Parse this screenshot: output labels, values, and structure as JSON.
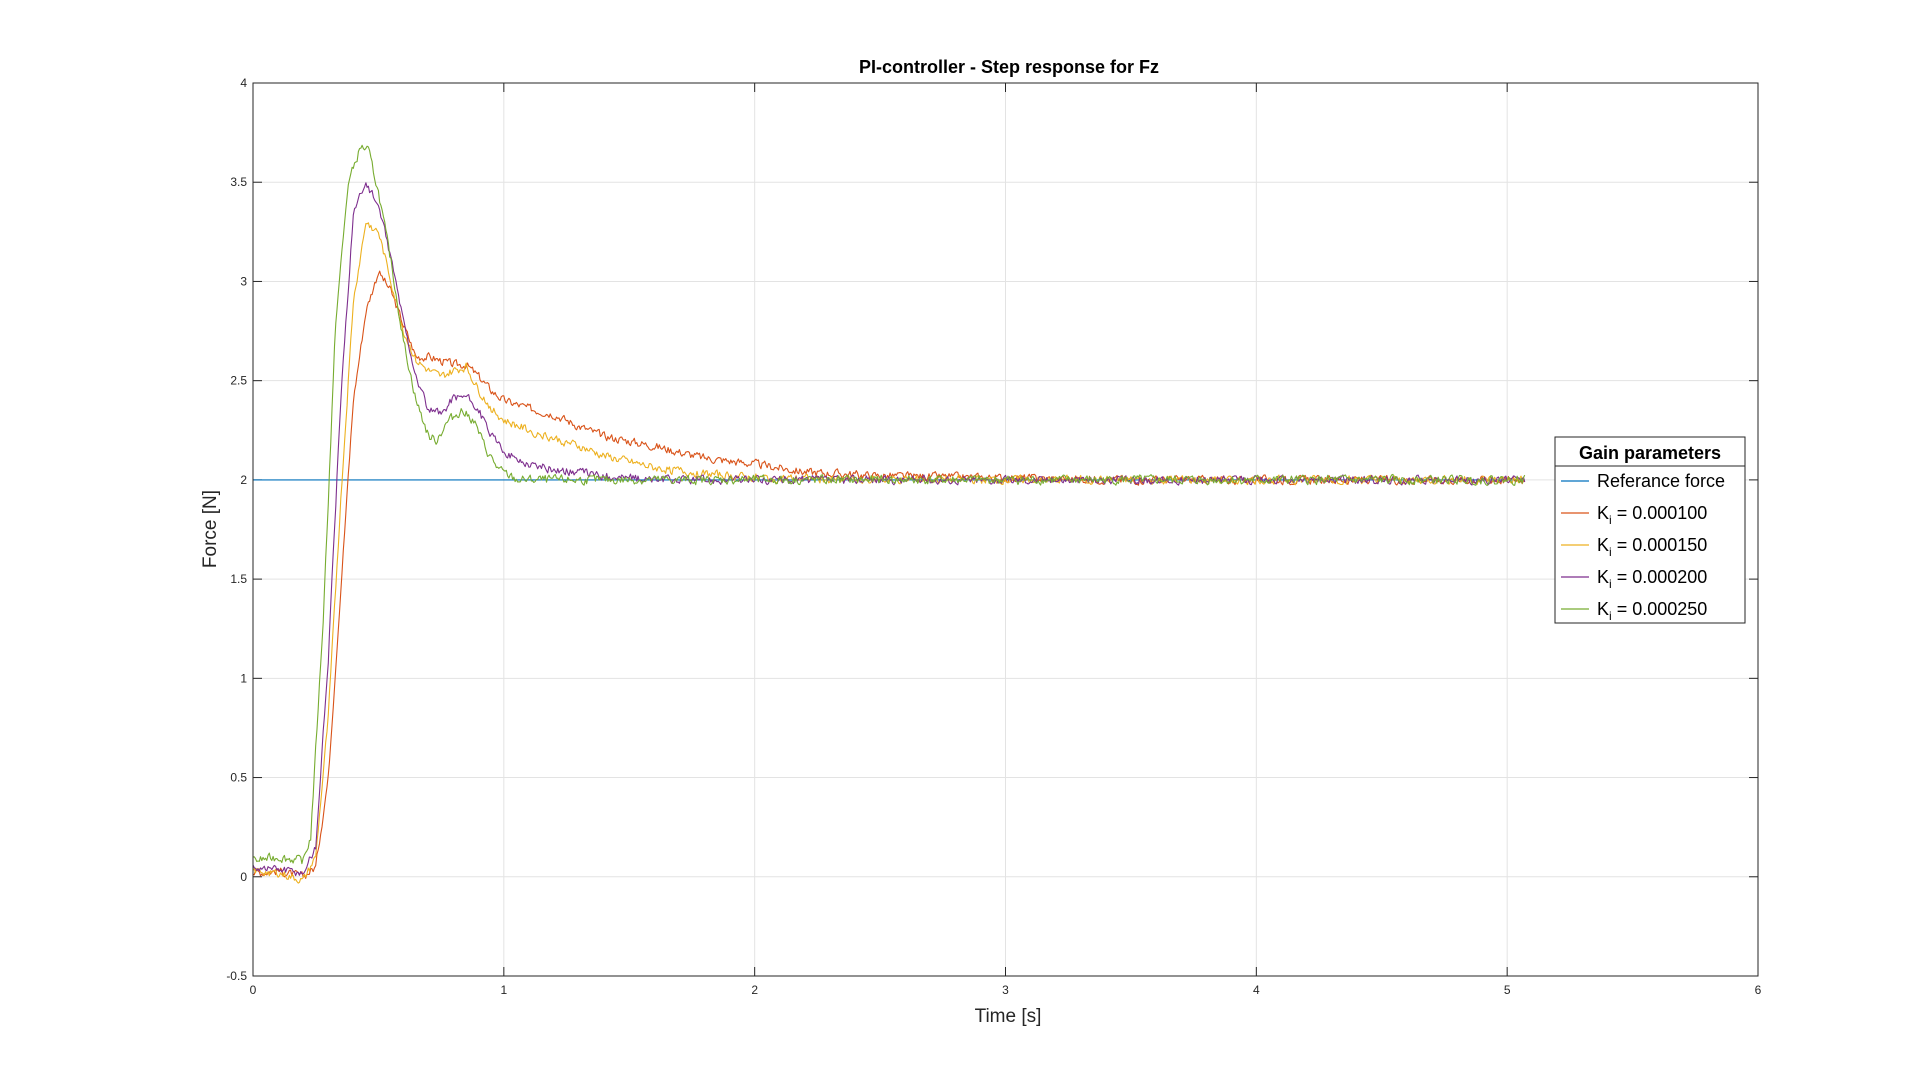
{
  "chart_data": {
    "type": "line",
    "title": "PI-controller - Step response for Fz",
    "xlabel": "Time [s]",
    "ylabel": "Force [N]",
    "xlim": [
      0,
      6
    ],
    "ylim": [
      -0.5,
      4
    ],
    "xticks": [
      "0",
      "1",
      "2",
      "3",
      "4",
      "5",
      "6"
    ],
    "yticks": [
      "-0.5",
      "0",
      "0.5",
      "1",
      "1.5",
      "2",
      "2.5",
      "3",
      "3.5",
      "4"
    ],
    "grid": true,
    "legend": {
      "title": "Gain parameters",
      "placement": "right"
    },
    "series": [
      {
        "name": "Referance force",
        "label_base": "Referance force",
        "label_sub": "",
        "label_rest": "",
        "color": "#0072BD",
        "x": [
          0,
          5.07
        ],
        "y": [
          2,
          2
        ],
        "noise": 0
      },
      {
        "name": "Ki = 0.000100",
        "label_base": "K",
        "label_sub": "i",
        "label_rest": " = 0.000100",
        "color": "#D95319",
        "x": [
          0,
          0.1,
          0.2,
          0.25,
          0.3,
          0.35,
          0.4,
          0.45,
          0.5,
          0.55,
          0.6,
          0.65,
          0.7,
          0.75,
          0.8,
          0.85,
          0.9,
          0.95,
          1.0,
          1.1,
          1.2,
          1.3,
          1.4,
          1.6,
          1.8,
          2.0,
          2.2,
          2.5,
          3.0,
          3.5,
          4.0,
          4.5,
          5.07
        ],
        "y": [
          0.02,
          0.03,
          0.0,
          0.05,
          0.5,
          1.45,
          2.4,
          2.85,
          3.05,
          2.95,
          2.78,
          2.62,
          2.62,
          2.6,
          2.58,
          2.58,
          2.52,
          2.45,
          2.4,
          2.36,
          2.33,
          2.27,
          2.22,
          2.17,
          2.11,
          2.08,
          2.04,
          2.02,
          2.01,
          2.0,
          2.0,
          2.0,
          2.0
        ],
        "noise": 0.012
      },
      {
        "name": "Ki = 0.000150",
        "label_base": "K",
        "label_sub": "i",
        "label_rest": " = 0.000150",
        "color": "#EDB120",
        "x": [
          0,
          0.1,
          0.2,
          0.25,
          0.3,
          0.35,
          0.4,
          0.45,
          0.5,
          0.55,
          0.6,
          0.65,
          0.7,
          0.75,
          0.8,
          0.85,
          0.9,
          0.95,
          1.0,
          1.1,
          1.2,
          1.3,
          1.4,
          1.6,
          1.8,
          2.0,
          2.5,
          3.0,
          3.5,
          4.0,
          4.5,
          5.07
        ],
        "y": [
          0.03,
          0.02,
          -0.02,
          0.1,
          0.8,
          1.9,
          2.9,
          3.3,
          3.25,
          3.0,
          2.75,
          2.6,
          2.55,
          2.52,
          2.55,
          2.57,
          2.45,
          2.36,
          2.3,
          2.25,
          2.21,
          2.17,
          2.12,
          2.06,
          2.03,
          2.01,
          2.0,
          2.0,
          2.0,
          2.0,
          2.0,
          2.0
        ],
        "noise": 0.012
      },
      {
        "name": "Ki = 0.000200",
        "label_base": "K",
        "label_sub": "i",
        "label_rest": " = 0.000200",
        "color": "#7E2F8E",
        "x": [
          0,
          0.1,
          0.2,
          0.25,
          0.3,
          0.35,
          0.4,
          0.45,
          0.5,
          0.55,
          0.6,
          0.65,
          0.7,
          0.75,
          0.8,
          0.85,
          0.9,
          0.95,
          1.0,
          1.05,
          1.1,
          1.2,
          1.3,
          1.4,
          1.6,
          1.8,
          2.0,
          2.5,
          3.0,
          3.5,
          4.0,
          4.5,
          5.07
        ],
        "y": [
          0.05,
          0.04,
          0.02,
          0.15,
          1.1,
          2.4,
          3.35,
          3.5,
          3.38,
          3.12,
          2.8,
          2.52,
          2.35,
          2.33,
          2.42,
          2.42,
          2.35,
          2.22,
          2.15,
          2.1,
          2.08,
          2.05,
          2.04,
          2.02,
          2.0,
          2.0,
          2.0,
          2.0,
          2.0,
          2.0,
          2.0,
          2.0,
          2.0
        ],
        "noise": 0.012
      },
      {
        "name": "Ki = 0.000250",
        "label_base": "K",
        "label_sub": "i",
        "label_rest": " = 0.000250",
        "color": "#77AC30",
        "x": [
          0,
          0.1,
          0.2,
          0.23,
          0.28,
          0.33,
          0.38,
          0.43,
          0.46,
          0.5,
          0.55,
          0.6,
          0.65,
          0.7,
          0.73,
          0.78,
          0.83,
          0.88,
          0.93,
          0.98,
          1.05,
          1.1,
          1.2,
          1.4,
          1.6,
          1.8,
          2.0,
          2.5,
          3.0,
          3.5,
          4.0,
          4.5,
          5.07
        ],
        "y": [
          0.08,
          0.1,
          0.08,
          0.2,
          1.3,
          2.8,
          3.5,
          3.68,
          3.66,
          3.45,
          3.1,
          2.7,
          2.4,
          2.22,
          2.2,
          2.3,
          2.35,
          2.3,
          2.15,
          2.05,
          2.0,
          2.0,
          2.0,
          2.0,
          2.0,
          2.0,
          2.0,
          2.0,
          2.0,
          2.0,
          2.0,
          2.0,
          2.0
        ],
        "noise": 0.013
      }
    ]
  }
}
